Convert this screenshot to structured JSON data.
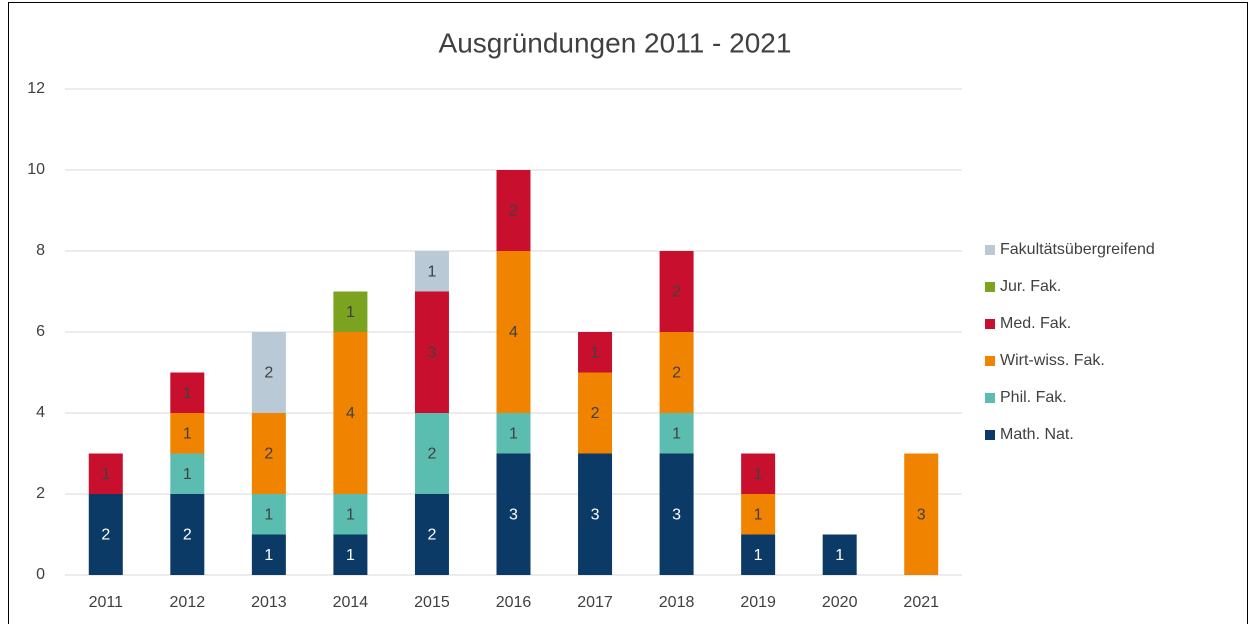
{
  "chart_data": {
    "type": "bar",
    "stacked": true,
    "title": "Ausgründungen 2011 - 2021",
    "categories": [
      "2011",
      "2012",
      "2013",
      "2014",
      "2015",
      "2016",
      "2017",
      "2018",
      "2019",
      "2020",
      "2021"
    ],
    "series": [
      {
        "name": "Math. Nat.",
        "color": "#0b3a66",
        "values": [
          2,
          2,
          1,
          1,
          2,
          3,
          3,
          3,
          1,
          1,
          null
        ]
      },
      {
        "name": "Phil. Fak.",
        "color": "#5bbcb0",
        "values": [
          null,
          1,
          1,
          1,
          2,
          1,
          null,
          1,
          null,
          null,
          null
        ]
      },
      {
        "name": "Wirt-wiss. Fak.",
        "color": "#f08300",
        "values": [
          null,
          1,
          2,
          4,
          null,
          4,
          2,
          2,
          1,
          null,
          3
        ]
      },
      {
        "name": "Med. Fak.",
        "color": "#c8102e",
        "values": [
          1,
          1,
          null,
          null,
          3,
          2,
          1,
          2,
          1,
          null,
          null
        ]
      },
      {
        "name": "Jur. Fak.",
        "color": "#7ba31f",
        "values": [
          null,
          null,
          null,
          1,
          null,
          null,
          null,
          null,
          null,
          null,
          null
        ]
      },
      {
        "name": "Fakultätsübergreifend",
        "color": "#b9c9d6",
        "values": [
          null,
          null,
          2,
          null,
          1,
          null,
          null,
          null,
          null,
          null,
          null
        ]
      }
    ],
    "ylim": [
      0,
      12
    ],
    "yticks": [
      0,
      2,
      4,
      6,
      8,
      10,
      12
    ],
    "grid": true,
    "legend": "right"
  }
}
